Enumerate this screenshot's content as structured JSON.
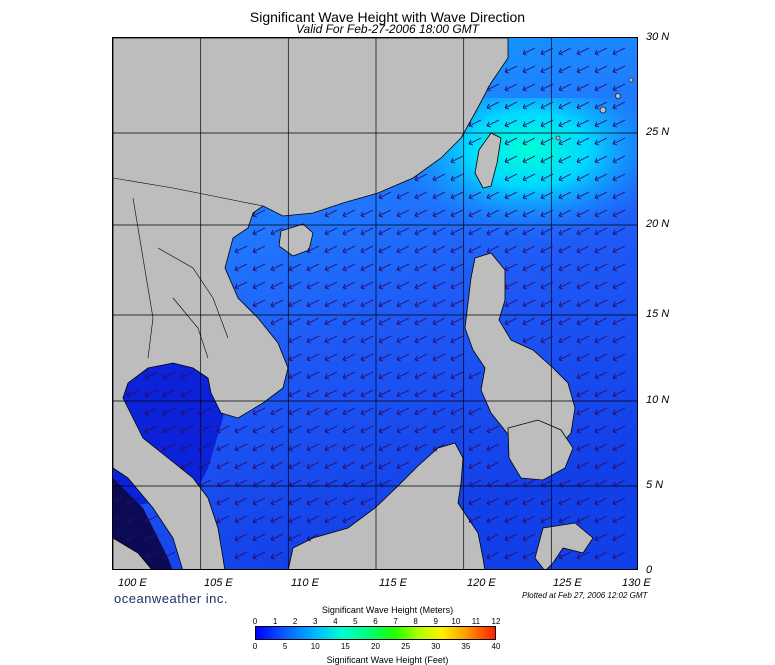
{
  "title": "Significant Wave Height with Wave Direction",
  "subtitle": "Valid For Feb-27-2006 18:00 GMT",
  "lat_labels": [
    "30 N",
    "25 N",
    "20 N",
    "15 N",
    "10 N",
    "5 N",
    "0"
  ],
  "lon_labels": [
    "100 E",
    "105 E",
    "110 E",
    "115 E",
    "120 E",
    "125 E",
    "130 E"
  ],
  "brand": "oceanweather inc.",
  "plotted": "Plotted at Feb 27, 2006 12:02 GMT",
  "colorbar": {
    "meters_title": "Significant Wave Height (Meters)",
    "feet_title": "Significant Wave Height (Feet)",
    "meters_ticks": [
      "0",
      "1",
      "2",
      "3",
      "4",
      "5",
      "6",
      "7",
      "8",
      "9",
      "10",
      "11",
      "12"
    ],
    "feet_ticks": [
      "0",
      "5",
      "10",
      "15",
      "20",
      "25",
      "30",
      "35",
      "40"
    ],
    "colors": [
      "#0000ff",
      "#0a5cff",
      "#00b8ff",
      "#00ffd0",
      "#00ff7a",
      "#1fff00",
      "#b0ff00",
      "#fff000",
      "#ff9a00",
      "#ff2000"
    ]
  },
  "map": {
    "extent": {
      "lon": [
        100,
        130
      ],
      "lat": [
        0,
        30
      ]
    },
    "land_color": "#bdbdbd",
    "sea_colors": {
      "low": "#1133ee",
      "mid": "#1f6cff",
      "high": "#00c8ff",
      "peak": "#00ffd6"
    },
    "wave_direction": "toward southwest",
    "grid_spacing_degrees": 5
  }
}
